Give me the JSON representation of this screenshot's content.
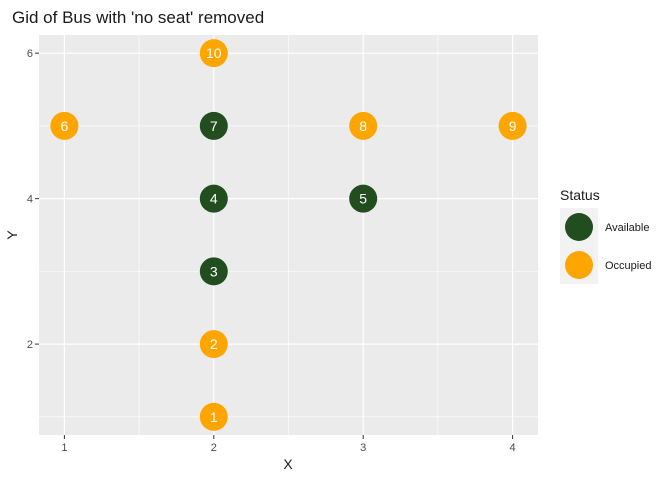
{
  "chart_data": {
    "type": "scatter",
    "title": "Gid of Bus with 'no seat' removed",
    "xlabel": "X",
    "ylabel": "Y",
    "xlim": [
      0.83,
      4.17
    ],
    "ylim": [
      0.75,
      6.25
    ],
    "x_ticks": [
      1,
      2,
      3,
      4
    ],
    "y_ticks": [
      2,
      4,
      6
    ],
    "grid": true,
    "legend": {
      "title": "Status",
      "position": "right",
      "entries": [
        {
          "label": "Available",
          "color": "#214d1f"
        },
        {
          "label": "Occupied",
          "color": "#ffa500"
        }
      ]
    },
    "points": [
      {
        "label": "1",
        "x": 2,
        "y": 1,
        "status": "Occupied"
      },
      {
        "label": "2",
        "x": 2,
        "y": 2,
        "status": "Occupied"
      },
      {
        "label": "3",
        "x": 2,
        "y": 3,
        "status": "Available"
      },
      {
        "label": "4",
        "x": 2,
        "y": 4,
        "status": "Available"
      },
      {
        "label": "5",
        "x": 3,
        "y": 4,
        "status": "Available"
      },
      {
        "label": "6",
        "x": 1,
        "y": 5,
        "status": "Occupied"
      },
      {
        "label": "7",
        "x": 2,
        "y": 5,
        "status": "Available"
      },
      {
        "label": "8",
        "x": 3,
        "y": 5,
        "status": "Occupied"
      },
      {
        "label": "9",
        "x": 4,
        "y": 5,
        "status": "Occupied"
      },
      {
        "label": "10",
        "x": 2,
        "y": 6,
        "status": "Occupied"
      }
    ]
  }
}
